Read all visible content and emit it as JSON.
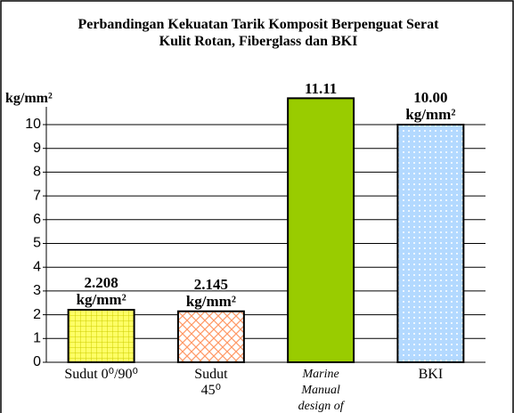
{
  "chart_data": {
    "type": "bar",
    "title": "Perbandingan Kekuatan Tarik Komposit Berpenguat Serat Kulit Rotan, Fiberglass dan BKI",
    "y_label": "kg/mm²",
    "categories": [
      "Sudut 0⁰/90⁰",
      "Sudut 45⁰",
      "Marine Manual design of FRP",
      "BKI"
    ],
    "values": [
      2.208,
      2.145,
      11.11,
      10.0
    ],
    "value_labels": [
      "2.208 kg/mm²",
      "2.145 kg/mm²",
      "11.11",
      "10.00 kg/mm²"
    ],
    "colors": [
      "#ffff66",
      "#ff9966",
      "#99cc00",
      "#b3d9ff"
    ],
    "ylim": [
      0,
      10
    ],
    "yticks": [
      0,
      1,
      2,
      3,
      4,
      5,
      6,
      7,
      8,
      9,
      10
    ],
    "grid": true
  }
}
